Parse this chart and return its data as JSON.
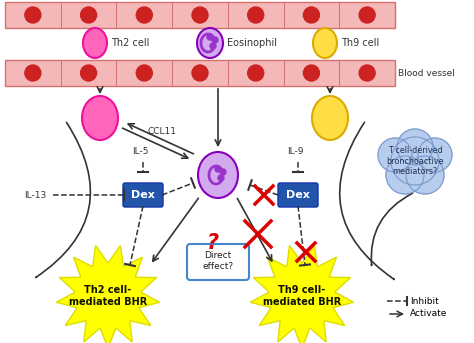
{
  "bg_color": "#ffffff",
  "vessel_color": "#f5b8b8",
  "vessel_border": "#d47070",
  "rbc_color": "#cc2222",
  "th2_fill": "#ff66bb",
  "th2_border": "#ee1199",
  "eos_fill": "#d4aaee",
  "eos_inner": "#9933cc",
  "eos_border": "#8800bb",
  "th9_fill": "#ffdd44",
  "th9_border": "#ddaa00",
  "dex_color": "#2255aa",
  "dex_text": "#ffffff",
  "star_color": "#ffff00",
  "star_border": "#dddd00",
  "cloud_color": "#b8ccee",
  "cloud_border": "#7799cc",
  "arrow_color": "#333333",
  "red_color": "#dd0000",
  "bubble_border": "#4488cc",
  "label_il5": "IL-5",
  "label_il9": "IL-9",
  "label_il13": "IL-13",
  "label_ccl11": "CCL11",
  "label_dex": "Dex",
  "label_bv": "Blood vessel",
  "label_th2cell": "Th2 cell",
  "label_eos": "Eosinophil",
  "label_th9cell": "Th9 cell",
  "label_th2bhr": "Th2 cell-\nmediated BHR",
  "label_th9bhr": "Th9 cell-\nmediated BHR",
  "label_direct": "Direct\neffect?",
  "label_cloud": "T cell-derived\nbronchoactive\nmediators?",
  "label_inhibit": "Inhibit",
  "label_activate": "Activate"
}
